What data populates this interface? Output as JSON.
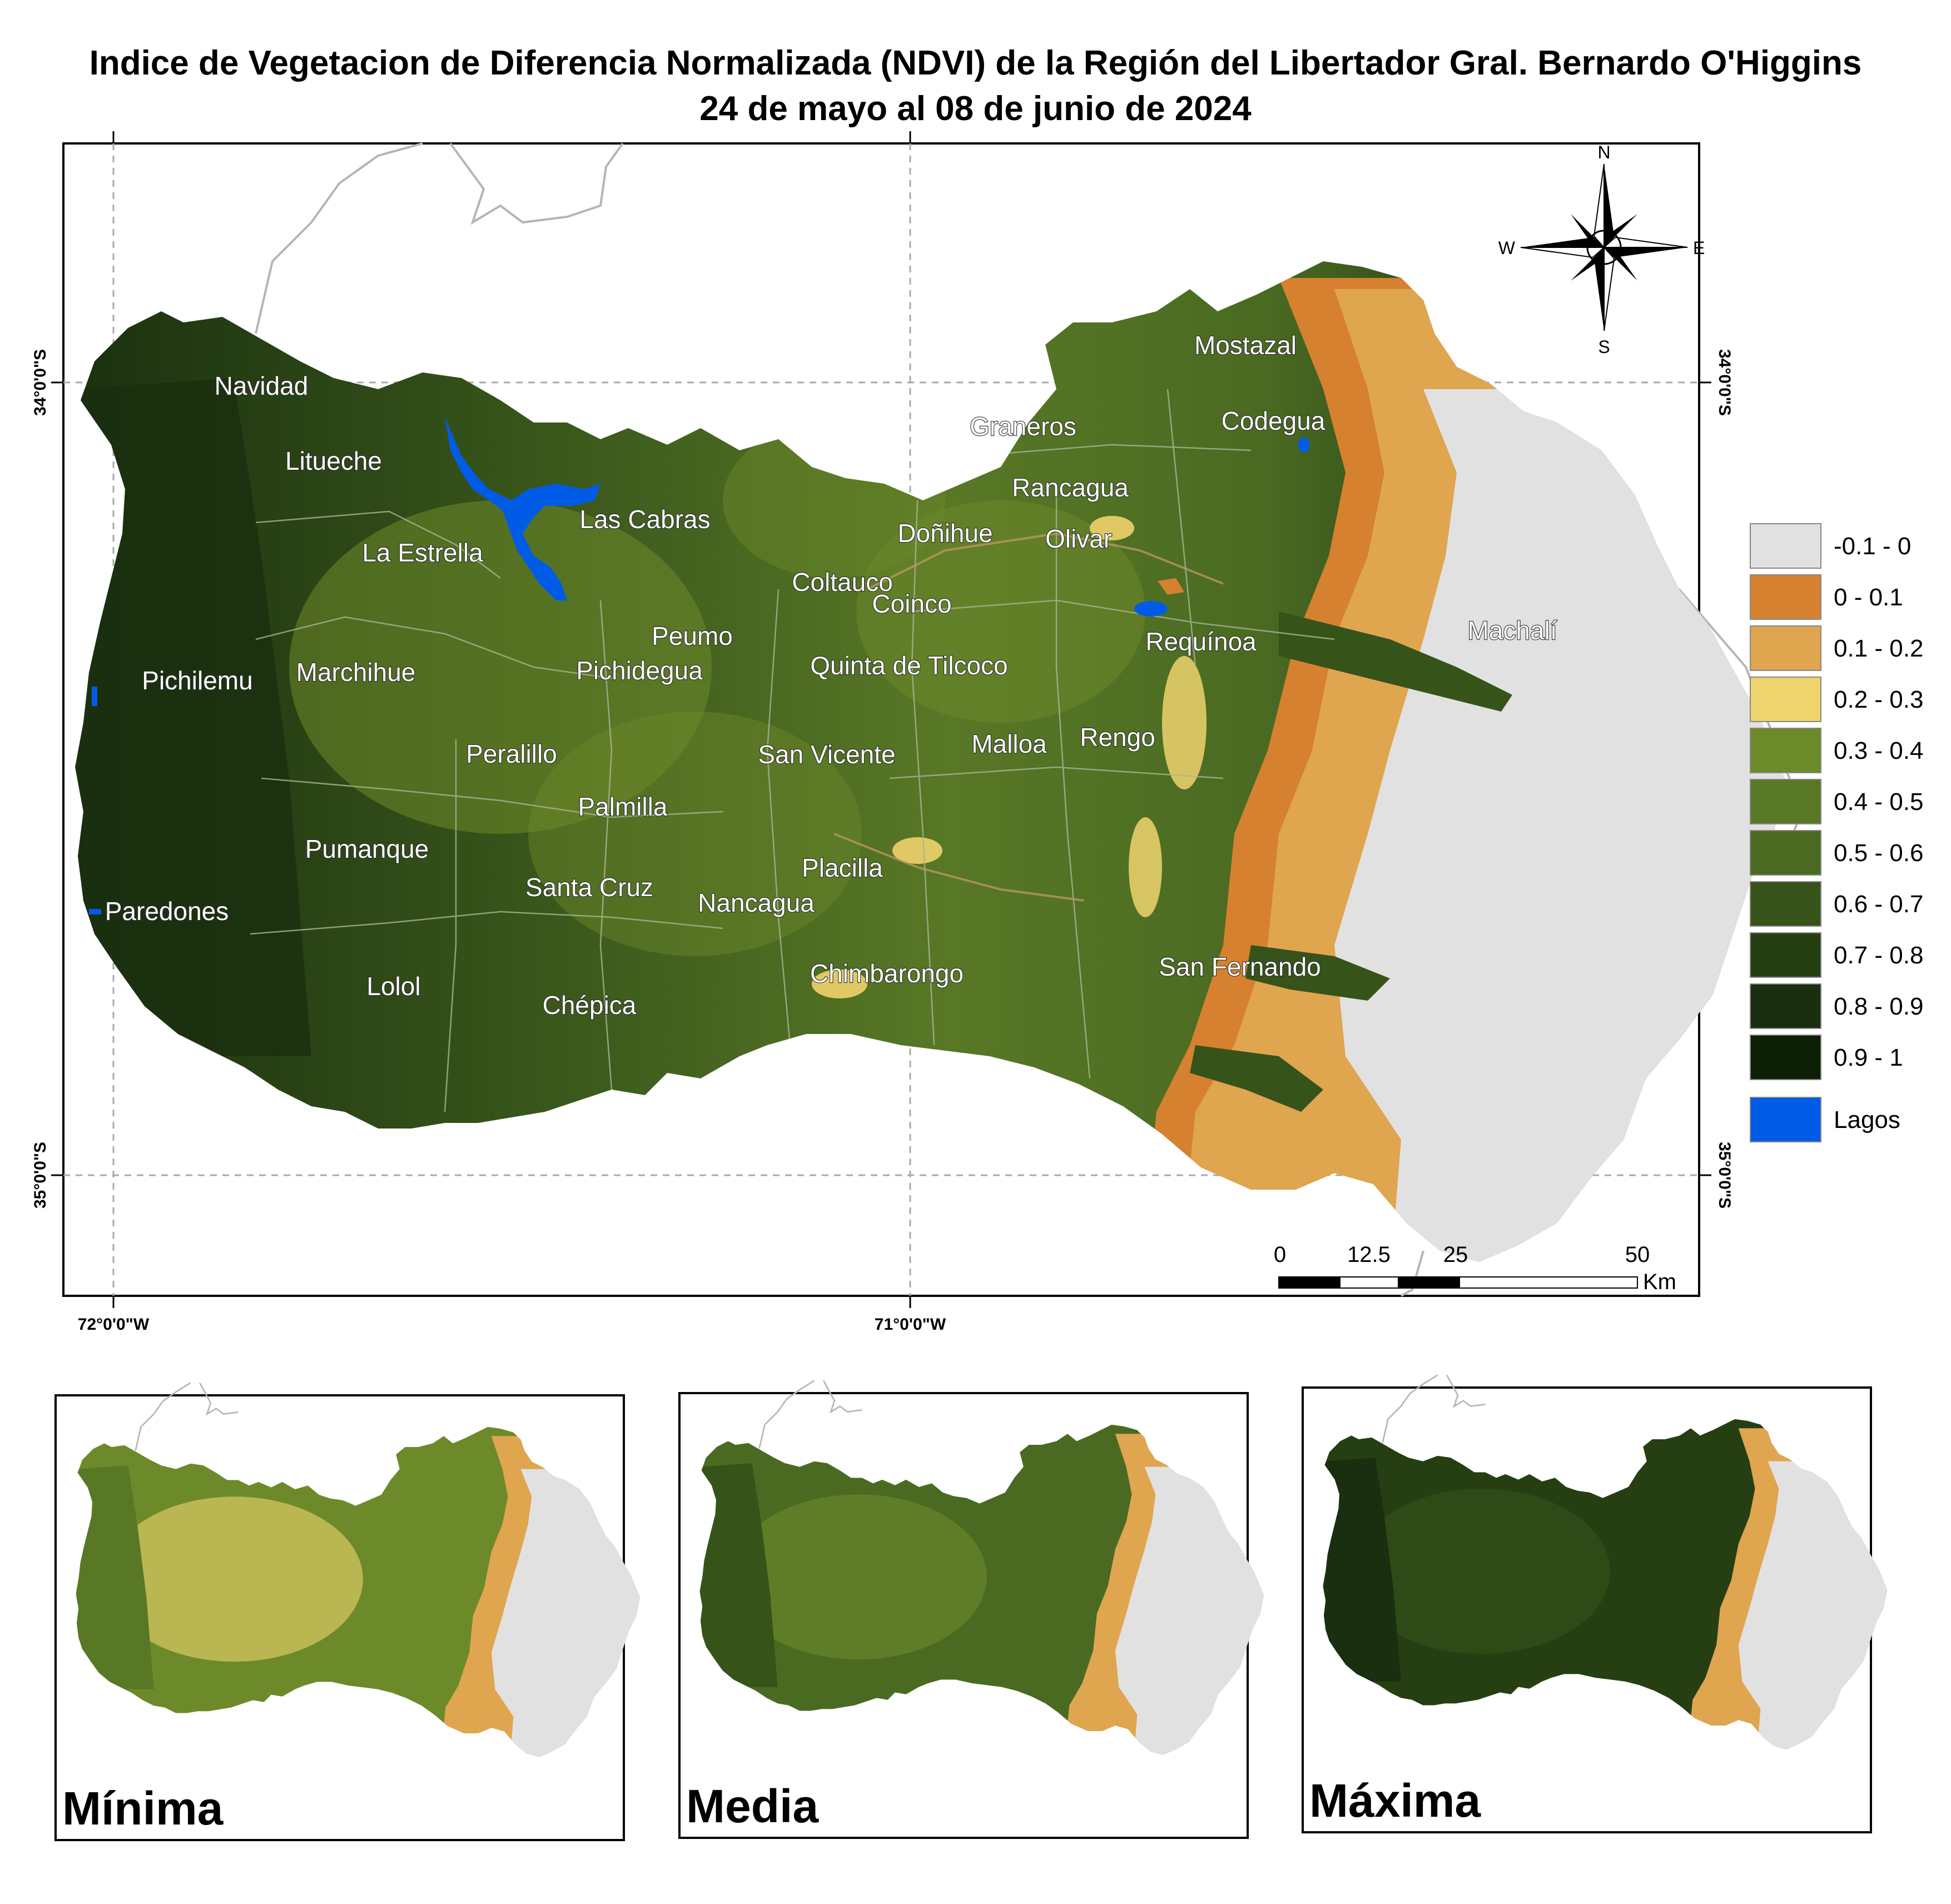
{
  "title": {
    "line1": "Indice de Vegetacion de Diferencia Normalizada (NDVI) de la Región del Libertador Gral. Bernardo O'Higgins",
    "line2": "24 de mayo al 08 de junio de 2024"
  },
  "coordinates": {
    "lat_34": "34°0'0\"S",
    "lat_35": "35°0'0\"S",
    "lon_72": "72°0'0\"W",
    "lon_71": "71°0'0\"W"
  },
  "north_arrow": {
    "n": "N",
    "s": "S",
    "e": "E",
    "w": "W"
  },
  "communes": [
    "Navidad",
    "Litueche",
    "La Estrella",
    "Las Cabras",
    "Pichilemu",
    "Marchihue",
    "Pichidegua",
    "Peumo",
    "Coltauco",
    "Coinco",
    "Quinta de Tilcoco",
    "Doñihue",
    "Olivar",
    "Rancagua",
    "Graneros",
    "Codegua",
    "Mostazal",
    "Requínoa",
    "Machalí",
    "Rengo",
    "Malloa",
    "San Vicente",
    "Peralillo",
    "Palmilla",
    "Pumanque",
    "Santa Cruz",
    "Nancagua",
    "Placilla",
    "Paredones",
    "Lolol",
    "Chépica",
    "Chimbarongo",
    "San Fernando"
  ],
  "legend": {
    "items": [
      {
        "label": "-0.1 - 0",
        "color": "#e1e1e1"
      },
      {
        "label": "0 - 0.1",
        "color": "#d6812f"
      },
      {
        "label": "0.1 - 0.2",
        "color": "#e0a54f"
      },
      {
        "label": "0.2 - 0.3",
        "color": "#efd36d"
      },
      {
        "label": "0.3 - 0.4",
        "color": "#6d8a2a"
      },
      {
        "label": "0.4 - 0.5",
        "color": "#587826"
      },
      {
        "label": "0.5 - 0.6",
        "color": "#4a6a22"
      },
      {
        "label": "0.6 - 0.7",
        "color": "#36531a"
      },
      {
        "label": "0.7 - 0.8",
        "color": "#253f13"
      },
      {
        "label": "0.8 - 0.9",
        "color": "#1a2f0f"
      },
      {
        "label": "0.9 - 1",
        "color": "#0e1f08"
      },
      {
        "label": "Lagos",
        "color": "#005ce6"
      }
    ]
  },
  "scale_bar": {
    "ticks": [
      "0",
      "12.5",
      "25",
      "50"
    ],
    "unit": "Km"
  },
  "insets": [
    {
      "label": "Mínima"
    },
    {
      "label": "Media"
    },
    {
      "label": "Máxima"
    }
  ]
}
